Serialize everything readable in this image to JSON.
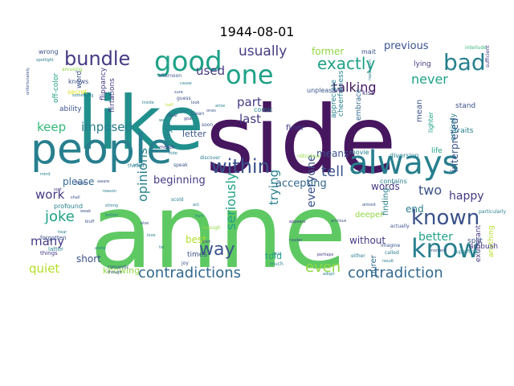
{
  "chart_data": {
    "type": "wordcloud",
    "title": "1944-08-01",
    "colors": {
      "dark_purple": "#46165f",
      "purple": "#443a83",
      "slate": "#3b528b",
      "blue": "#31688e",
      "teal": "#277f8e",
      "teal_green": "#21908d",
      "sea_green": "#1fa187",
      "green": "#35b779",
      "light_green": "#5ec962",
      "lime": "#90d743",
      "yellow_green": "#b5de2b",
      "yellow": "#dde318"
    },
    "words": [
      {
        "text": "anne",
        "color": "light_green"
      },
      {
        "text": "side",
        "color": "dark_purple"
      },
      {
        "text": "like",
        "color": "teal_green"
      },
      {
        "text": "people",
        "color": "teal"
      },
      {
        "text": "always",
        "color": "teal"
      },
      {
        "text": "know",
        "color": "teal"
      },
      {
        "text": "good",
        "color": "sea_green"
      },
      {
        "text": "one",
        "color": "sea_green"
      },
      {
        "text": "bad",
        "color": "teal"
      },
      {
        "text": "within",
        "color": "slate"
      },
      {
        "text": "known",
        "color": "slate"
      },
      {
        "text": "bundle",
        "color": "purple"
      },
      {
        "text": "contradictions",
        "color": "blue"
      },
      {
        "text": "contradiction",
        "color": "blue"
      },
      {
        "text": "exactly",
        "color": "sea_green"
      },
      {
        "text": "usually",
        "color": "purple"
      },
      {
        "text": "used",
        "color": "purple"
      },
      {
        "text": "part",
        "color": "purple"
      },
      {
        "text": "last",
        "color": "purple"
      },
      {
        "text": "never",
        "color": "sea_green"
      },
      {
        "text": "talking",
        "color": "dark_purple"
      },
      {
        "text": "tell",
        "color": "slate"
      },
      {
        "text": "imposed",
        "color": "teal"
      },
      {
        "text": "keep",
        "color": "green"
      },
      {
        "text": "two",
        "color": "slate"
      },
      {
        "text": "happy",
        "color": "purple"
      },
      {
        "text": "better",
        "color": "sea_green"
      },
      {
        "text": "opinions",
        "color": "teal"
      },
      {
        "text": "seriously",
        "color": "sea_green"
      },
      {
        "text": "trying",
        "color": "teal"
      },
      {
        "text": "everyone",
        "color": "slate"
      },
      {
        "text": "joke",
        "color": "sea_green"
      },
      {
        "text": "work",
        "color": "purple"
      },
      {
        "text": "many",
        "color": "purple"
      },
      {
        "text": "quiet",
        "color": "yellow_green"
      },
      {
        "text": "way",
        "color": "slate"
      },
      {
        "text": "even",
        "color": "lime"
      },
      {
        "text": "accepting",
        "color": "blue"
      },
      {
        "text": "please",
        "color": "blue"
      },
      {
        "text": "beginning",
        "color": "purple"
      },
      {
        "text": "previous",
        "color": "slate"
      },
      {
        "text": "former",
        "color": "lime"
      },
      {
        "text": "interpreted",
        "color": "slate"
      },
      {
        "text": "end",
        "color": "teal"
      },
      {
        "text": "without",
        "color": "purple"
      },
      {
        "text": "short",
        "color": "slate"
      },
      {
        "text": "best",
        "color": "yellow_green"
      },
      {
        "text": "means",
        "color": "slate"
      },
      {
        "text": "words",
        "color": "purple"
      },
      {
        "text": "told",
        "color": "sea_green"
      },
      {
        "text": "knowing",
        "color": "lime"
      },
      {
        "text": "letter",
        "color": "slate"
      },
      {
        "text": "ways",
        "color": "teal"
      },
      {
        "text": "mean",
        "color": "slate"
      },
      {
        "text": "finer",
        "color": "purple"
      },
      {
        "text": "times",
        "color": "slate"
      },
      {
        "text": "entirely",
        "color": "teal"
      },
      {
        "text": "exuberant",
        "color": "purple"
      },
      {
        "text": "anything",
        "color": "yellow_green"
      },
      {
        "text": "purer",
        "color": "blue"
      },
      {
        "text": "finding",
        "color": "teal"
      },
      {
        "text": "deeper",
        "color": "lime"
      },
      {
        "text": "split",
        "color": "slate"
      },
      {
        "text": "ambush",
        "color": "purple"
      },
      {
        "text": "life",
        "color": "sea_green"
      },
      {
        "text": "traits",
        "color": "teal"
      },
      {
        "text": "stand",
        "color": "slate"
      },
      {
        "text": "lighter",
        "color": "sea_green"
      },
      {
        "text": "lying",
        "color": "purple"
      },
      {
        "text": "mait",
        "color": "slate"
      },
      {
        "text": "kiss",
        "color": "purple"
      },
      {
        "text": "cheerfulness",
        "color": "teal"
      },
      {
        "text": "appreciate",
        "color": "teal"
      },
      {
        "text": "embrace",
        "color": "blue"
      },
      {
        "text": "unpleasant",
        "color": "slate"
      },
      {
        "text": "diversion",
        "color": "teal"
      },
      {
        "text": "contains",
        "color": "teal"
      },
      {
        "text": "movie",
        "color": "teal"
      },
      {
        "text": "comic",
        "color": "teal"
      },
      {
        "text": "flirtations",
        "color": "purple"
      },
      {
        "text": "flippancy",
        "color": "purple"
      },
      {
        "text": "ability",
        "color": "slate"
      },
      {
        "text": "secret",
        "color": "yellow"
      },
      {
        "text": "knows",
        "color": "slate"
      },
      {
        "text": "word",
        "color": "slate"
      },
      {
        "text": "off-color",
        "color": "sea_green"
      },
      {
        "text": "wrong",
        "color": "slate"
      },
      {
        "text": "profound",
        "color": "teal"
      },
      {
        "text": "forgotten",
        "color": "slate"
      },
      {
        "text": "latter",
        "color": "teal"
      },
      {
        "text": "things",
        "color": "purple"
      },
      {
        "text": "romantic",
        "color": "slate"
      },
      {
        "text": "interlude",
        "color": "green"
      },
      {
        "text": "particularly",
        "color": "teal"
      },
      {
        "text": "actually",
        "color": "slate"
      },
      {
        "text": "superficial",
        "color": "teal"
      },
      {
        "text": "sufficient",
        "color": "purple"
      },
      {
        "text": "reputation",
        "color": "teal"
      },
      {
        "text": "ridiculous",
        "color": "lime"
      },
      {
        "text": "afternoon",
        "color": "slate"
      },
      {
        "text": "thinker",
        "color": "teal"
      },
      {
        "text": "enough",
        "color": "lime"
      },
      {
        "text": "much",
        "color": "teal"
      },
      {
        "text": "joy",
        "color": "slate"
      },
      {
        "text": "month",
        "color": "purple"
      },
      {
        "text": "speak",
        "color": "slate"
      },
      {
        "text": "soon",
        "color": "slate"
      },
      {
        "text": "discover",
        "color": "teal"
      },
      {
        "text": "spotlight",
        "color": "teal"
      },
      {
        "text": "amusing",
        "color": "lime"
      },
      {
        "text": "something",
        "color": "teal"
      },
      {
        "text": "unfortunately",
        "color": "slate"
      },
      {
        "text": "deal",
        "color": "teal"
      },
      {
        "text": "reader",
        "color": "slate"
      },
      {
        "text": "appears",
        "color": "purple"
      },
      {
        "text": "alone",
        "color": "teal"
      },
      {
        "text": "though",
        "color": "slate"
      },
      {
        "text": "either",
        "color": "teal"
      },
      {
        "text": "imagine",
        "color": "slate"
      },
      {
        "text": "called",
        "color": "teal"
      },
      {
        "text": "almost",
        "color": "slate"
      },
      {
        "text": "perhaps",
        "color": "purple"
      },
      {
        "text": "adopt",
        "color": "teal"
      },
      {
        "text": "moment",
        "color": "slate"
      },
      {
        "text": "result",
        "color": "teal"
      },
      {
        "text": "anxious",
        "color": "slate"
      },
      {
        "text": "well",
        "color": "teal"
      },
      {
        "text": "dear",
        "color": "slate"
      },
      {
        "text": "hide",
        "color": "teal"
      },
      {
        "text": "half",
        "color": "yellow_green"
      },
      {
        "text": "guess",
        "color": "slate"
      },
      {
        "text": "caught",
        "color": "teal"
      },
      {
        "text": "cause",
        "color": "teal"
      },
      {
        "text": "sure",
        "color": "slate"
      },
      {
        "text": "afraid",
        "color": "teal"
      },
      {
        "text": "ones",
        "color": "slate"
      },
      {
        "text": "arise",
        "color": "teal"
      },
      {
        "text": "look",
        "color": "slate"
      },
      {
        "text": "scold",
        "color": "teal"
      },
      {
        "text": "goal",
        "color": "purple"
      },
      {
        "text": "inside",
        "color": "teal"
      },
      {
        "text": "clean",
        "color": "slate"
      },
      {
        "text": "mind",
        "color": "teal"
      },
      {
        "text": "fifteen",
        "color": "slate"
      },
      {
        "text": "often",
        "color": "teal"
      },
      {
        "text": "sort",
        "color": "purple"
      },
      {
        "text": "reason",
        "color": "teal"
      },
      {
        "text": "shall",
        "color": "slate"
      },
      {
        "text": "bother",
        "color": "teal"
      },
      {
        "text": "strong",
        "color": "teal"
      },
      {
        "text": "weak",
        "color": "slate"
      },
      {
        "text": "hear",
        "color": "teal"
      },
      {
        "text": "bluff",
        "color": "slate"
      },
      {
        "text": "act",
        "color": "teal"
      },
      {
        "text": "else",
        "color": "slate"
      },
      {
        "text": "love",
        "color": "teal"
      },
      {
        "text": "aware",
        "color": "slate"
      },
      {
        "text": "far",
        "color": "teal"
      },
      {
        "text": "part",
        "color": "slate"
      },
      {
        "text": "hurt",
        "color": "teal"
      },
      {
        "text": "ones",
        "color": "slate"
      },
      {
        "text": "eager",
        "color": "teal"
      }
    ]
  }
}
